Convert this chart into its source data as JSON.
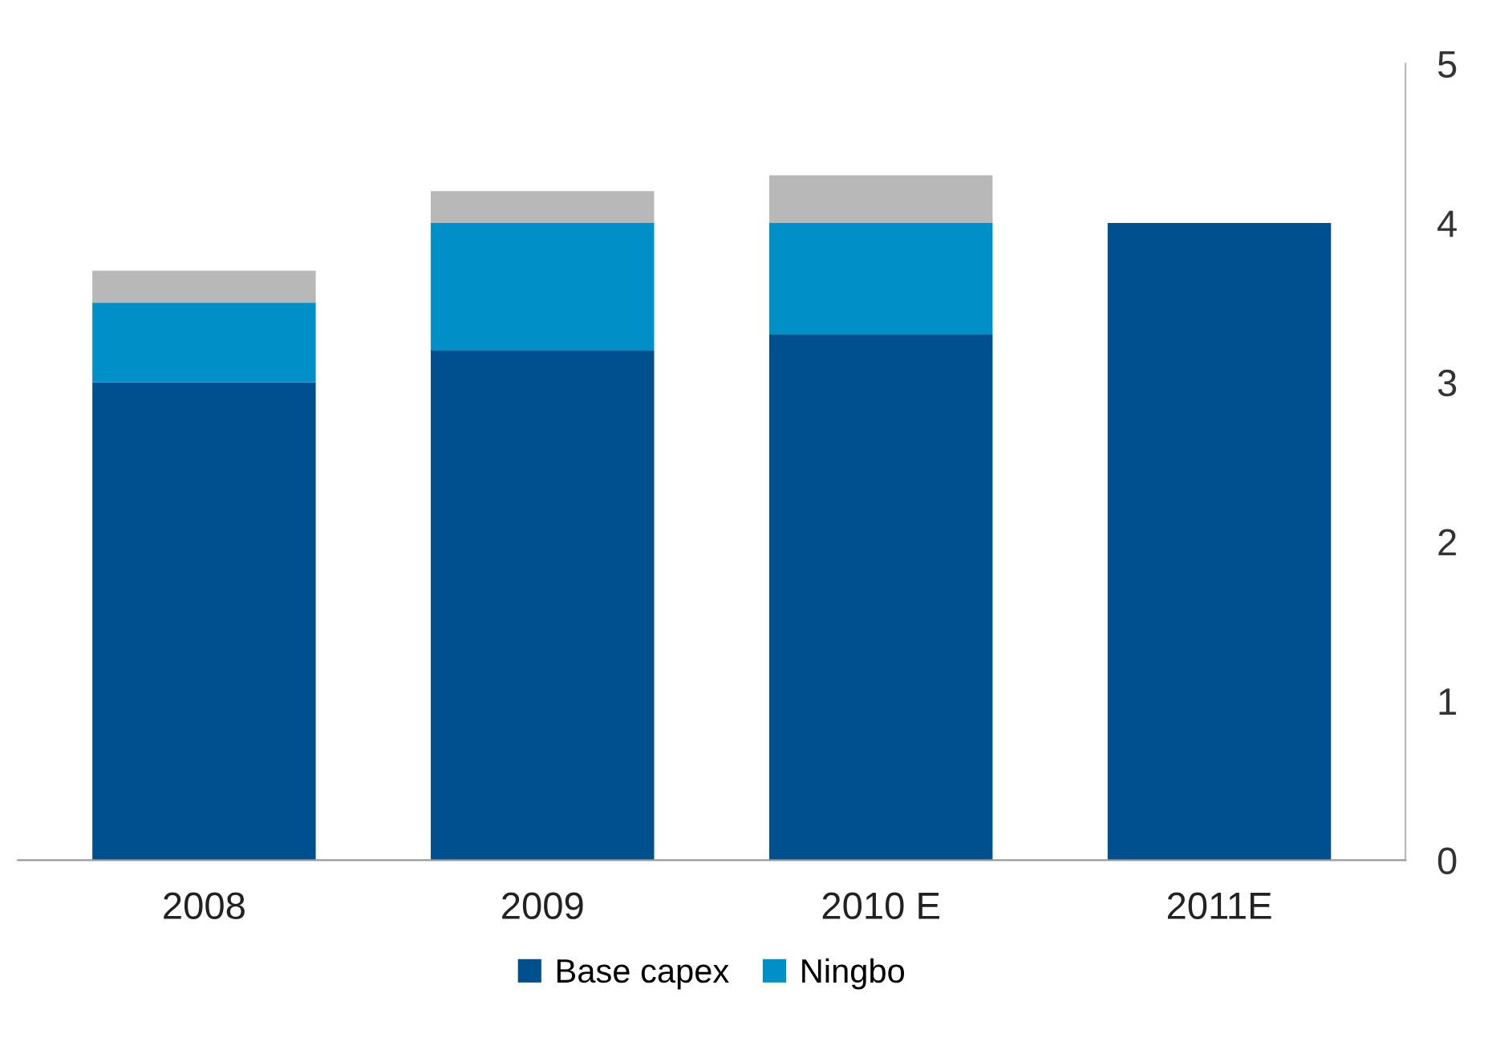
{
  "chart_data": {
    "type": "bar",
    "stacked": true,
    "categories": [
      "2008",
      "2009",
      "2010 E",
      "2011E"
    ],
    "series": [
      {
        "name": "Base capex",
        "color": "#00508f",
        "values": [
          3.0,
          3.2,
          3.3,
          4.0
        ]
      },
      {
        "name": "Ningbo",
        "color": "#0090c8",
        "values": [
          0.5,
          0.8,
          0.7,
          null
        ]
      },
      {
        "color": "#b8b8b8",
        "values": [
          0.2,
          0.2,
          0.3,
          null
        ]
      }
    ],
    "ylim": [
      0,
      5
    ],
    "yticks": [
      0,
      1,
      2,
      3,
      4,
      5
    ],
    "grid": false,
    "legend": "bottom"
  }
}
